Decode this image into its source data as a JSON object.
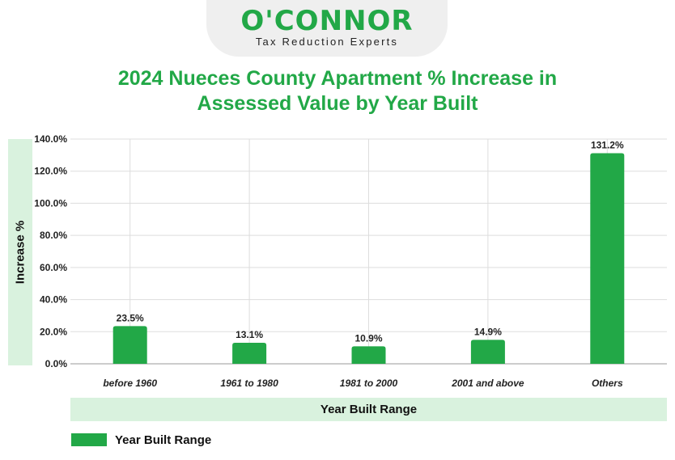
{
  "brand": {
    "name": "O'CONNOR",
    "tagline": "Tax Reduction Experts",
    "color": "#22a847"
  },
  "chart_data": {
    "type": "bar",
    "title": "2024 Nueces County Apartment % Increase in Assessed Value by Year Built",
    "title_lines": [
      "2024 Nueces County Apartment % Increase in",
      "Assessed Value by Year Built"
    ],
    "xlabel": "Year Built Range",
    "ylabel": "Increase %",
    "categories": [
      "before 1960",
      "1961 to 1980",
      "1981 to 2000",
      "2001 and above",
      "Others"
    ],
    "values": [
      23.5,
      13.1,
      10.9,
      14.9,
      131.2
    ],
    "data_labels": [
      "23.5%",
      "13.1%",
      "10.9%",
      "14.9%",
      "131.2%"
    ],
    "ylim": [
      0,
      140
    ],
    "yticks": [
      0,
      20,
      40,
      60,
      80,
      100,
      120,
      140
    ],
    "ytick_labels": [
      "0.0%",
      "20.0%",
      "40.0%",
      "60.0%",
      "80.0%",
      "100.0%",
      "120.0%",
      "140.0%"
    ],
    "legend": [
      "Year Built Range"
    ],
    "legend_position": "bottom-left",
    "grid": true,
    "bar_color": "#22a847"
  }
}
